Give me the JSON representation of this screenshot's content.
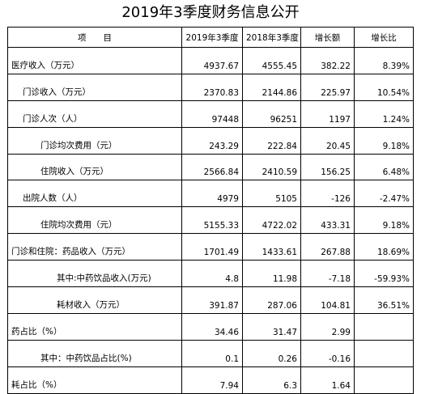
{
  "title": "2019年3季度财务信息公开",
  "header": {
    "item": "项　　目",
    "col_2019": "2019年3季度",
    "col_2018": "2018年3季度",
    "col_change": "增长额",
    "col_ratio": "增长比"
  },
  "rows": [
    {
      "label": "医疗收入（万元）",
      "v2019": "4937.67",
      "v2018": "4555.45",
      "change": "382.22",
      "ratio": "8.39%"
    },
    {
      "label": "门诊收入（万元）",
      "v2019": "2370.83",
      "v2018": "2144.86",
      "change": "225.97",
      "ratio": "10.54%"
    },
    {
      "label": "门诊人次（人）",
      "v2019": "97448",
      "v2018": "96251",
      "change": "1197",
      "ratio": "1.24%"
    },
    {
      "label": "门诊均次费用（元）",
      "v2019": "243.29",
      "v2018": "222.84",
      "change": "20.45",
      "ratio": "9.18%"
    },
    {
      "label": "住院收入（万元）",
      "v2019": "2566.84",
      "v2018": "2410.59",
      "change": "156.25",
      "ratio": "6.48%"
    },
    {
      "label": "出院人数（人）",
      "v2019": "4979",
      "v2018": "5105",
      "change": "-126",
      "ratio": "-2.47%"
    },
    {
      "label": "住院均次费用（元）",
      "v2019": "5155.33",
      "v2018": "4722.02",
      "change": "433.31",
      "ratio": "9.18%"
    },
    {
      "label": "门诊和住院：药品收入（万元）",
      "v2019": "1701.49",
      "v2018": "1433.61",
      "change": "267.88",
      "ratio": "18.69%"
    },
    {
      "label": "其中:中药饮品收入(万元)",
      "v2019": "4.8",
      "v2018": "11.98",
      "change": "-7.18",
      "ratio": "-59.93%"
    },
    {
      "label": "耗材收入（万元）",
      "v2019": "391.87",
      "v2018": "287.06",
      "change": "104.81",
      "ratio": "36.51%"
    },
    {
      "label": "药占比（%）",
      "v2019": "34.46",
      "v2018": "31.47",
      "change": "2.99",
      "ratio": ""
    },
    {
      "label": "其中：中药饮品占比(%)",
      "v2019": "0.1",
      "v2018": "0.26",
      "change": "-0.16",
      "ratio": ""
    },
    {
      "label": "耗占比（%）",
      "v2019": "7.94",
      "v2018": "6.3",
      "change": "1.64",
      "ratio": ""
    }
  ]
}
